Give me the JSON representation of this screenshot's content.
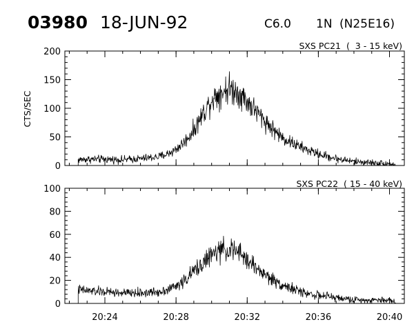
{
  "header": {
    "event_number": "03980",
    "date": "18-JUN-92",
    "flare_class": "C6.0",
    "optical_class": "1N",
    "location": "(N25E16)"
  },
  "chart_data": [
    {
      "type": "line",
      "title": "SXS PC21  (  3 - 15 keV)",
      "xlabel": "",
      "ylabel": "CTS/SEC",
      "xlim": [
        "20:21:45",
        "20:40:50"
      ],
      "ylim": [
        0,
        200
      ],
      "yticks": [
        0,
        50,
        100,
        150,
        200
      ],
      "yticklabels": [
        "0",
        "50",
        "100",
        "150",
        "200"
      ],
      "xticks": [
        "20:24",
        "20:28",
        "20:32",
        "20:36",
        "20:40"
      ],
      "xticklabels": [
        "",
        "",
        "",
        "",
        ""
      ],
      "color": "#000000",
      "series": [
        {
          "x": [
            "20:22:30",
            "20:23:00",
            "20:24:00",
            "20:25:00",
            "20:26:00",
            "20:27:00",
            "20:27:30",
            "20:28:00",
            "20:28:30",
            "20:29:00",
            "20:29:30",
            "20:30:00",
            "20:30:30",
            "20:31:00",
            "20:31:30",
            "20:32:00",
            "20:32:30",
            "20:33:00",
            "20:33:30",
            "20:34:00",
            "20:35:00",
            "20:36:00",
            "20:37:00",
            "20:38:00",
            "20:38:30",
            "20:39:00",
            "20:39:30",
            "20:40:00",
            "20:40:20"
          ],
          "y": [
            10,
            11,
            11,
            10,
            12,
            15,
            20,
            28,
            42,
            62,
            90,
            115,
            128,
            135,
            128,
            112,
            95,
            78,
            62,
            48,
            32,
            20,
            12,
            7,
            6,
            5,
            4,
            3,
            1
          ]
        }
      ]
    },
    {
      "type": "line",
      "title": "SXS PC22  ( 15 - 40 keV)",
      "xlabel": "",
      "ylabel": "",
      "xlim": [
        "20:21:45",
        "20:40:50"
      ],
      "ylim": [
        0,
        100
      ],
      "yticks": [
        0,
        20,
        40,
        60,
        80,
        100
      ],
      "yticklabels": [
        "0",
        "20",
        "40",
        "60",
        "80",
        "100"
      ],
      "xticks": [
        "20:24",
        "20:28",
        "20:32",
        "20:36",
        "20:40"
      ],
      "xticklabels": [
        "20:24",
        "20:28",
        "20:32",
        "20:36",
        "20:40"
      ],
      "color": "#000000",
      "series": [
        {
          "x": [
            "20:22:30",
            "20:23:00",
            "20:24:00",
            "20:25:00",
            "20:26:00",
            "20:27:00",
            "20:27:30",
            "20:28:00",
            "20:28:30",
            "20:29:00",
            "20:29:30",
            "20:30:00",
            "20:30:30",
            "20:31:00",
            "20:31:30",
            "20:32:00",
            "20:32:30",
            "20:33:00",
            "20:33:30",
            "20:34:00",
            "20:35:00",
            "20:36:00",
            "20:37:00",
            "20:38:00",
            "20:38:30",
            "20:39:00",
            "20:39:30",
            "20:40:00",
            "20:40:20"
          ],
          "y": [
            12,
            11,
            10,
            9,
            9,
            10,
            12,
            15,
            20,
            28,
            35,
            42,
            46,
            47,
            44,
            38,
            31,
            25,
            20,
            16,
            10,
            7,
            5,
            3,
            3,
            3,
            3,
            3,
            1
          ]
        }
      ]
    }
  ]
}
